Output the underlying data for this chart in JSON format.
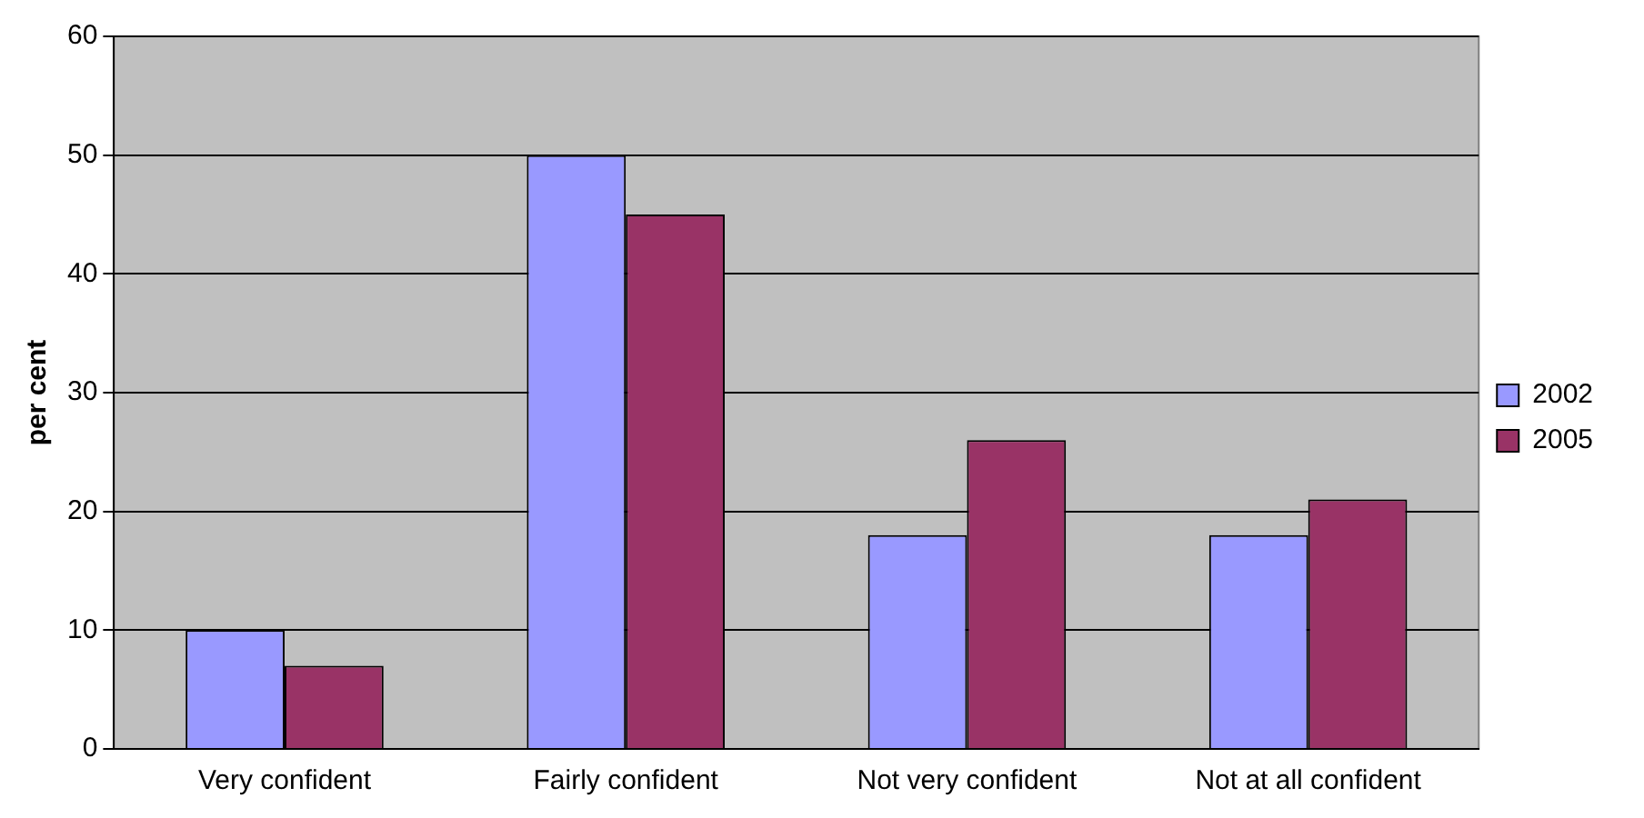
{
  "chart_data": {
    "type": "bar",
    "ylabel": "per cent",
    "categories": [
      "Very confident",
      "Fairly confident",
      "Not very confident",
      "Not at all confident"
    ],
    "series": [
      {
        "name": "2002",
        "color": "#9999ff",
        "values": [
          10,
          50,
          18,
          18
        ]
      },
      {
        "name": "2005",
        "color": "#993366",
        "values": [
          7,
          45,
          26,
          21
        ]
      }
    ],
    "ylim": [
      0,
      60
    ],
    "yticks": [
      0,
      10,
      20,
      30,
      40,
      50,
      60
    ],
    "grid": "y",
    "legend": "right"
  }
}
